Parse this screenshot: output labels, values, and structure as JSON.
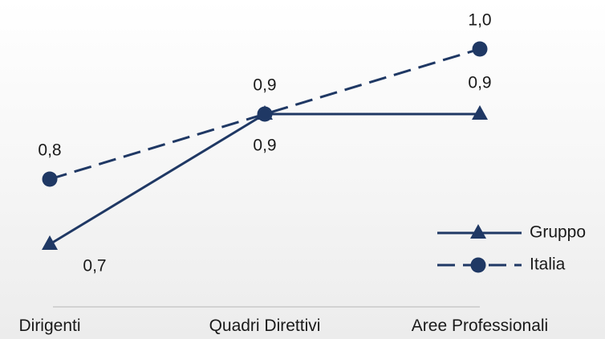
{
  "chart_data": {
    "type": "line",
    "categories": [
      "Dirigenti",
      "Quadri Direttivi",
      "Aree Professionali"
    ],
    "series": [
      {
        "name": "Gruppo",
        "values": [
          0.7,
          0.9,
          0.9
        ],
        "labels": [
          "0,7",
          "0,9",
          "0,9"
        ],
        "marker": "triangle",
        "line_style": "solid",
        "color": "#1f3864"
      },
      {
        "name": "Italia",
        "values": [
          0.8,
          0.9,
          1.0
        ],
        "labels": [
          "0,8",
          "0,9",
          "1,0"
        ],
        "marker": "circle",
        "line_style": "dashed",
        "color": "#1f3864"
      }
    ],
    "ylim": [
      0.6,
      1.05
    ],
    "grid": false,
    "legend_position": "bottom-right",
    "axis_color": "#c8c8c8"
  }
}
